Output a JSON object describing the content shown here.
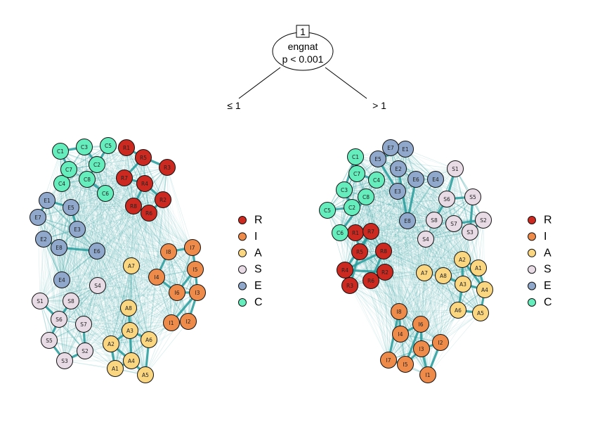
{
  "tree": {
    "node_id": "1",
    "variable": "engnat",
    "p_value": "p < 0.001",
    "left_edge_label": "≤ 1",
    "right_edge_label": "> 1"
  },
  "colors": {
    "R": "#cc2a21",
    "I": "#ee8a4a",
    "A": "#fbd681",
    "S": "#e8dbe6",
    "E": "#8fa8cb",
    "C": "#66edbd",
    "edge": "#2a9d9d"
  },
  "legend": [
    {
      "key": "R",
      "label": "R"
    },
    {
      "key": "I",
      "label": "I"
    },
    {
      "key": "A",
      "label": "A"
    },
    {
      "key": "S",
      "label": "S"
    },
    {
      "key": "E",
      "label": "E"
    },
    {
      "key": "C",
      "label": "C"
    }
  ],
  "networks": [
    {
      "id": "left",
      "nodes": [
        "R1",
        "R2",
        "R3",
        "R4",
        "R5",
        "R6",
        "R7",
        "R8",
        "I1",
        "I2",
        "I3",
        "I4",
        "I5",
        "I6",
        "I7",
        "I8",
        "A1",
        "A2",
        "A3",
        "A4",
        "A5",
        "A6",
        "A7",
        "A8",
        "S1",
        "S2",
        "S3",
        "S4",
        "S5",
        "S6",
        "S7",
        "S8",
        "E1",
        "E2",
        "E3",
        "E4",
        "E5",
        "E6",
        "E7",
        "E8",
        "C1",
        "C2",
        "C3",
        "C4",
        "C5",
        "C6",
        "C7",
        "C8"
      ]
    },
    {
      "id": "right",
      "nodes": [
        "R1",
        "R2",
        "R3",
        "R4",
        "R5",
        "R6",
        "R7",
        "R8",
        "I1",
        "I2",
        "I3",
        "I4",
        "I5",
        "I6",
        "I7",
        "I8",
        "A1",
        "A2",
        "A3",
        "A4",
        "A5",
        "A6",
        "A7",
        "A8",
        "S1",
        "S2",
        "S3",
        "S4",
        "S5",
        "S6",
        "S7",
        "S8",
        "E1",
        "E2",
        "E3",
        "E4",
        "E5",
        "E6",
        "E7",
        "E8",
        "C1",
        "C2",
        "C3",
        "C4",
        "C5",
        "C6",
        "C7",
        "C8"
      ]
    }
  ]
}
